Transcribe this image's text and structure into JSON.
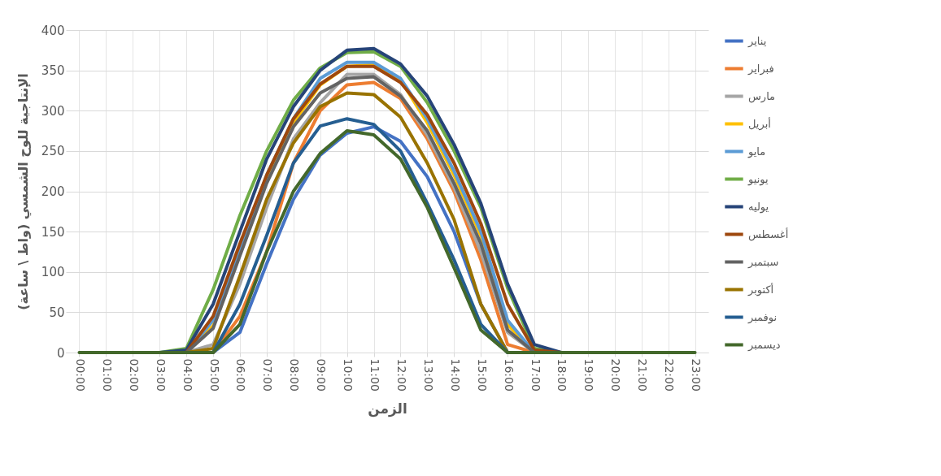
{
  "chart_data": {
    "type": "line",
    "xlabel": "الزمن",
    "ylabel": "الإنتاجية للوح الشمسي (واط \\ ساعة)",
    "categories": [
      "00:00",
      "01:00",
      "02:00",
      "03:00",
      "04:00",
      "05:00",
      "06:00",
      "07:00",
      "08:00",
      "09:00",
      "10:00",
      "11:00",
      "12:00",
      "13:00",
      "14:00",
      "15:00",
      "16:00",
      "17:00",
      "18:00",
      "19:00",
      "20:00",
      "21:00",
      "22:00",
      "23:00"
    ],
    "series": [
      {
        "name": "يناير",
        "color": "#4472c4",
        "values": [
          null,
          null,
          null,
          null,
          0,
          0,
          25,
          110,
          190,
          245,
          272,
          280,
          262,
          218,
          150,
          60,
          0,
          0,
          null,
          null,
          null,
          null,
          null,
          null
        ]
      },
      {
        "name": "فبراير",
        "color": "#ed7d31",
        "values": [
          null,
          null,
          null,
          null,
          0,
          0,
          45,
          125,
          235,
          300,
          332,
          335,
          315,
          265,
          200,
          115,
          10,
          0,
          null,
          null,
          null,
          null,
          null,
          null
        ]
      },
      {
        "name": "مارس",
        "color": "#a5a5a5",
        "values": [
          null,
          null,
          null,
          null,
          0,
          10,
          85,
          180,
          265,
          310,
          345,
          345,
          320,
          270,
          205,
          125,
          25,
          0,
          null,
          null,
          null,
          null,
          null,
          null
        ]
      },
      {
        "name": "أبريل",
        "color": "#ffc000",
        "values": [
          null,
          null,
          null,
          null,
          0,
          33,
          122,
          212,
          285,
          332,
          355,
          357,
          338,
          285,
          220,
          145,
          35,
          0,
          null,
          null,
          null,
          null,
          null,
          null
        ]
      },
      {
        "name": "مايو",
        "color": "#5b9bd5",
        "values": [
          null,
          null,
          null,
          null,
          0,
          40,
          130,
          220,
          290,
          340,
          360,
          360,
          340,
          290,
          225,
          150,
          40,
          0,
          null,
          null,
          null,
          null,
          null,
          null
        ]
      },
      {
        "name": "يونيو",
        "color": "#70ad47",
        "values": [
          null,
          null,
          null,
          0,
          5,
          78,
          170,
          250,
          313,
          353,
          372,
          373,
          355,
          310,
          250,
          180,
          80,
          5,
          0,
          null,
          null,
          null,
          null,
          null
        ]
      },
      {
        "name": "يوليه",
        "color": "#264478",
        "values": [
          null,
          null,
          null,
          0,
          3,
          60,
          150,
          240,
          305,
          350,
          375,
          377,
          358,
          318,
          258,
          185,
          85,
          10,
          0,
          null,
          null,
          null,
          null,
          null
        ]
      },
      {
        "name": "أغسطس",
        "color": "#9e480e",
        "values": [
          null,
          null,
          null,
          null,
          0,
          45,
          135,
          220,
          290,
          333,
          355,
          355,
          335,
          295,
          235,
          160,
          60,
          3,
          0,
          null,
          null,
          null,
          null,
          null
        ]
      },
      {
        "name": "سبتمبر",
        "color": "#636363",
        "values": [
          null,
          null,
          null,
          null,
          0,
          30,
          120,
          210,
          280,
          322,
          340,
          342,
          318,
          275,
          210,
          135,
          28,
          0,
          null,
          null,
          null,
          null,
          null,
          null
        ]
      },
      {
        "name": "أكتوبر",
        "color": "#997300",
        "values": [
          null,
          null,
          null,
          null,
          0,
          5,
          95,
          190,
          260,
          305,
          322,
          320,
          292,
          235,
          165,
          60,
          0,
          0,
          null,
          null,
          null,
          null,
          null,
          null
        ]
      },
      {
        "name": "نوفمبر",
        "color": "#255e91",
        "values": [
          null,
          null,
          null,
          null,
          0,
          0,
          60,
          145,
          235,
          281,
          290,
          283,
          250,
          185,
          115,
          35,
          0,
          0,
          null,
          null,
          null,
          null,
          null,
          null
        ]
      },
      {
        "name": "ديسمبر",
        "color": "#43682b",
        "values": [
          0,
          0,
          0,
          0,
          0,
          0,
          35,
          125,
          200,
          247,
          275,
          270,
          240,
          180,
          105,
          28,
          0,
          0,
          0,
          0,
          0,
          0,
          0,
          0
        ]
      }
    ],
    "ylim": [
      0,
      400
    ],
    "yticks": [
      0,
      50,
      100,
      150,
      200,
      250,
      300,
      350,
      400
    ],
    "grid": true,
    "legend": "right",
    "marker": "none",
    "line_style": "solid"
  }
}
